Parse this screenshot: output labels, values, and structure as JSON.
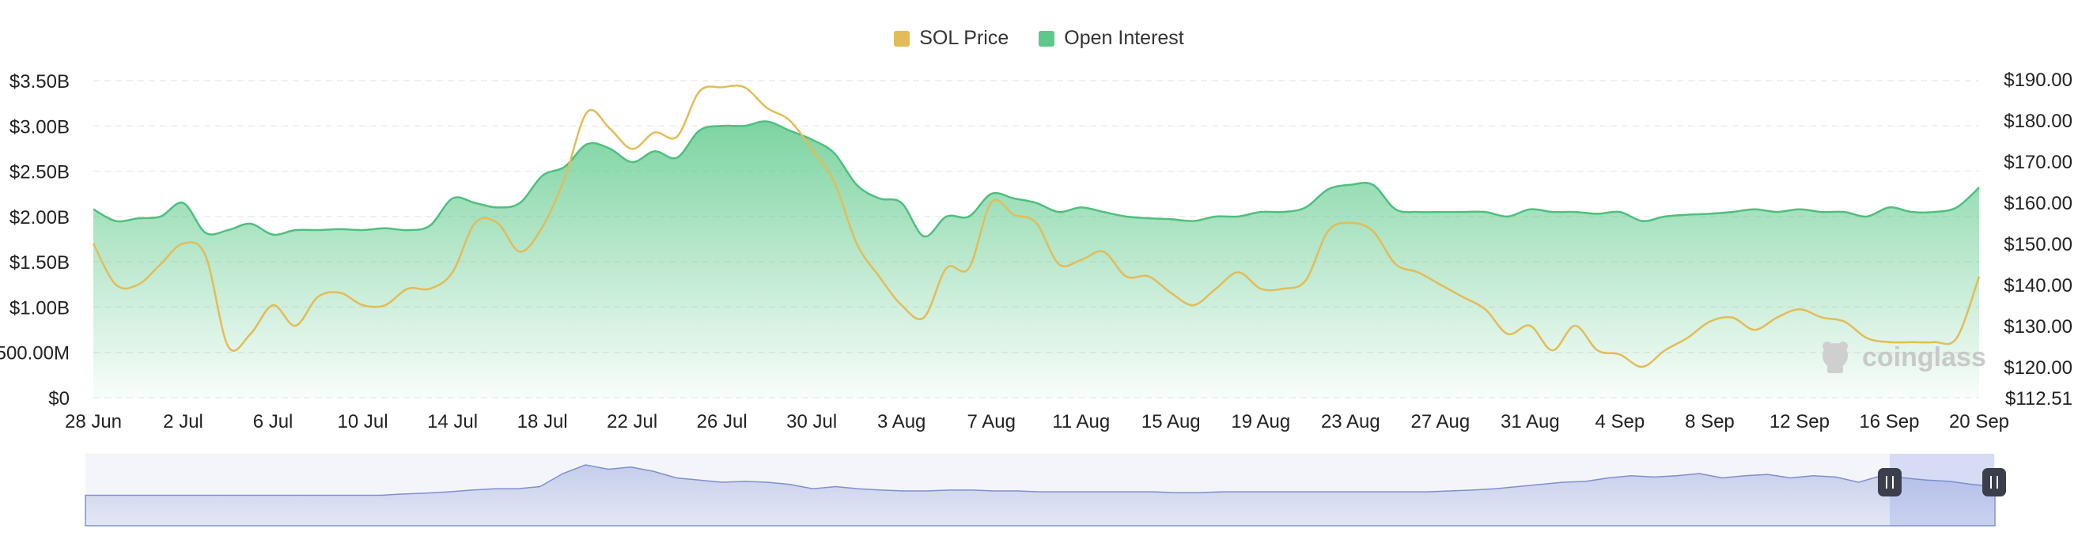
{
  "legend": {
    "price_label": "SOL Price",
    "oi_label": "Open Interest",
    "price_color": "#e3bc57",
    "oi_color": "#5cc98a"
  },
  "watermark": "coinglass",
  "chart_data": {
    "type": "area",
    "title": "",
    "x_ticks": [
      "28 Jun",
      "2 Jul",
      "6 Jul",
      "10 Jul",
      "14 Jul",
      "18 Jul",
      "22 Jul",
      "26 Jul",
      "30 Jul",
      "3 Aug",
      "7 Aug",
      "11 Aug",
      "15 Aug",
      "19 Aug",
      "23 Aug",
      "27 Aug",
      "31 Aug",
      "4 Sep",
      "8 Sep",
      "12 Sep",
      "16 Sep",
      "20 Sep"
    ],
    "y_left_ticks": [
      "$0",
      "500.00M",
      "$1.00B",
      "$1.50B",
      "$2.00B",
      "$2.50B",
      "$3.00B",
      "$3.50B"
    ],
    "y_right_ticks": [
      "$112.51",
      "$120.00",
      "$130.00",
      "$140.00",
      "$150.00",
      "$160.00",
      "$170.00",
      "$180.00",
      "$190.00"
    ],
    "y_left_range": [
      0,
      3500000000
    ],
    "y_right_range": [
      112.51,
      190
    ],
    "grid": true,
    "legend_position": "top-center",
    "x_days": [
      0,
      1,
      2,
      3,
      4,
      5,
      6,
      7,
      8,
      9,
      10,
      11,
      12,
      13,
      14,
      15,
      16,
      17,
      18,
      19,
      20,
      21,
      22,
      23,
      24,
      25,
      26,
      27,
      28,
      29,
      30,
      31,
      32,
      33,
      34,
      35,
      36,
      37,
      38,
      39,
      40,
      41,
      42,
      43,
      44,
      45,
      46,
      47,
      48,
      49,
      50,
      51,
      52,
      53,
      54,
      55,
      56,
      57,
      58,
      59,
      60,
      61,
      62,
      63,
      64,
      65,
      66,
      67,
      68,
      69,
      70,
      71,
      72,
      73,
      74,
      75,
      76,
      77,
      78,
      79,
      80,
      81,
      82,
      83,
      84
    ],
    "x": [
      "28 Jun",
      "29 Jun",
      "30 Jun",
      "1 Jul",
      "2 Jul",
      "3 Jul",
      "4 Jul",
      "5 Jul",
      "6 Jul",
      "7 Jul",
      "8 Jul",
      "9 Jul",
      "10 Jul",
      "11 Jul",
      "12 Jul",
      "13 Jul",
      "14 Jul",
      "15 Jul",
      "16 Jul",
      "17 Jul",
      "18 Jul",
      "19 Jul",
      "20 Jul",
      "21 Jul",
      "22 Jul",
      "23 Jul",
      "24 Jul",
      "25 Jul",
      "26 Jul",
      "27 Jul",
      "28 Jul",
      "29 Jul",
      "30 Jul",
      "31 Jul",
      "1 Aug",
      "2 Aug",
      "3 Aug",
      "4 Aug",
      "5 Aug",
      "6 Aug",
      "7 Aug",
      "8 Aug",
      "9 Aug",
      "10 Aug",
      "11 Aug",
      "12 Aug",
      "13 Aug",
      "14 Aug",
      "15 Aug",
      "16 Aug",
      "17 Aug",
      "18 Aug",
      "19 Aug",
      "20 Aug",
      "21 Aug",
      "22 Aug",
      "23 Aug",
      "24 Aug",
      "25 Aug",
      "26 Aug",
      "27 Aug",
      "28 Aug",
      "29 Aug",
      "30 Aug",
      "31 Aug",
      "1 Sep",
      "2 Sep",
      "3 Sep",
      "4 Sep",
      "5 Sep",
      "6 Sep",
      "7 Sep",
      "8 Sep",
      "9 Sep",
      "10 Sep",
      "11 Sep",
      "12 Sep",
      "13 Sep",
      "14 Sep",
      "15 Sep",
      "16 Sep",
      "17 Sep",
      "18 Sep",
      "19 Sep",
      "20 Sep"
    ],
    "series": [
      {
        "name": "Open Interest",
        "axis": "left",
        "values": [
          2.08,
          1.95,
          1.98,
          2.0,
          2.15,
          1.82,
          1.85,
          1.92,
          1.8,
          1.85,
          1.85,
          1.86,
          1.85,
          1.87,
          1.85,
          1.9,
          2.2,
          2.15,
          2.1,
          2.15,
          2.45,
          2.55,
          2.8,
          2.75,
          2.6,
          2.72,
          2.65,
          2.95,
          3.0,
          3.0,
          3.05,
          2.95,
          2.85,
          2.7,
          2.35,
          2.2,
          2.15,
          1.78,
          2.0,
          2.0,
          2.25,
          2.2,
          2.15,
          2.05,
          2.1,
          2.05,
          2.0,
          1.98,
          1.97,
          1.95,
          2.0,
          2.0,
          2.05,
          2.05,
          2.1,
          2.3,
          2.35,
          2.35,
          2.08,
          2.05,
          2.05,
          2.05,
          2.05,
          2.0,
          2.08,
          2.05,
          2.05,
          2.03,
          2.05,
          1.95,
          2.0,
          2.02,
          2.03,
          2.05,
          2.08,
          2.05,
          2.08,
          2.05,
          2.05,
          2.0,
          2.1,
          2.05,
          2.05,
          2.1,
          2.32
        ]
      },
      {
        "name": "SOL Price",
        "axis": "right",
        "values": [
          150,
          140,
          140,
          145,
          150,
          147,
          125,
          128,
          135,
          130,
          137,
          138,
          135,
          135,
          139,
          139,
          143,
          155,
          155,
          148,
          154,
          166,
          182,
          178,
          173,
          177,
          176,
          187,
          188,
          188,
          183,
          180,
          173,
          165,
          150,
          142,
          135,
          132,
          144,
          144,
          160,
          157,
          155,
          145,
          146,
          148,
          142,
          142,
          138,
          135,
          139,
          143,
          139,
          139,
          141,
          153,
          155,
          153,
          145,
          143,
          140,
          137,
          134,
          128,
          130,
          124,
          130,
          124,
          123,
          120,
          124,
          127,
          131,
          132,
          129,
          132,
          134,
          132,
          131,
          127,
          126,
          126,
          126,
          127,
          142
        ]
      }
    ]
  },
  "navigator": {
    "description_values": [
      0.3,
      0.3,
      0.3,
      0.3,
      0.3,
      0.3,
      0.3,
      0.3,
      0.3,
      0.3,
      0.3,
      0.3,
      0.3,
      0.3,
      0.33,
      0.35,
      0.38,
      0.42,
      0.45,
      0.45,
      0.5,
      0.8,
      1.0,
      0.9,
      0.95,
      0.85,
      0.7,
      0.65,
      0.6,
      0.62,
      0.6,
      0.55,
      0.45,
      0.5,
      0.45,
      0.42,
      0.4,
      0.4,
      0.42,
      0.42,
      0.4,
      0.4,
      0.38,
      0.38,
      0.38,
      0.38,
      0.38,
      0.38,
      0.36,
      0.36,
      0.38,
      0.38,
      0.38,
      0.38,
      0.38,
      0.38,
      0.38,
      0.38,
      0.38,
      0.38,
      0.4,
      0.42,
      0.45,
      0.5,
      0.55,
      0.6,
      0.62,
      0.7,
      0.75,
      0.72,
      0.75,
      0.8,
      0.7,
      0.75,
      0.78,
      0.7,
      0.75,
      0.72,
      0.6,
      0.75,
      0.7,
      0.65,
      0.62,
      0.55,
      0.5
    ],
    "selected_range": [
      "16 Sep",
      "20 Sep"
    ]
  }
}
